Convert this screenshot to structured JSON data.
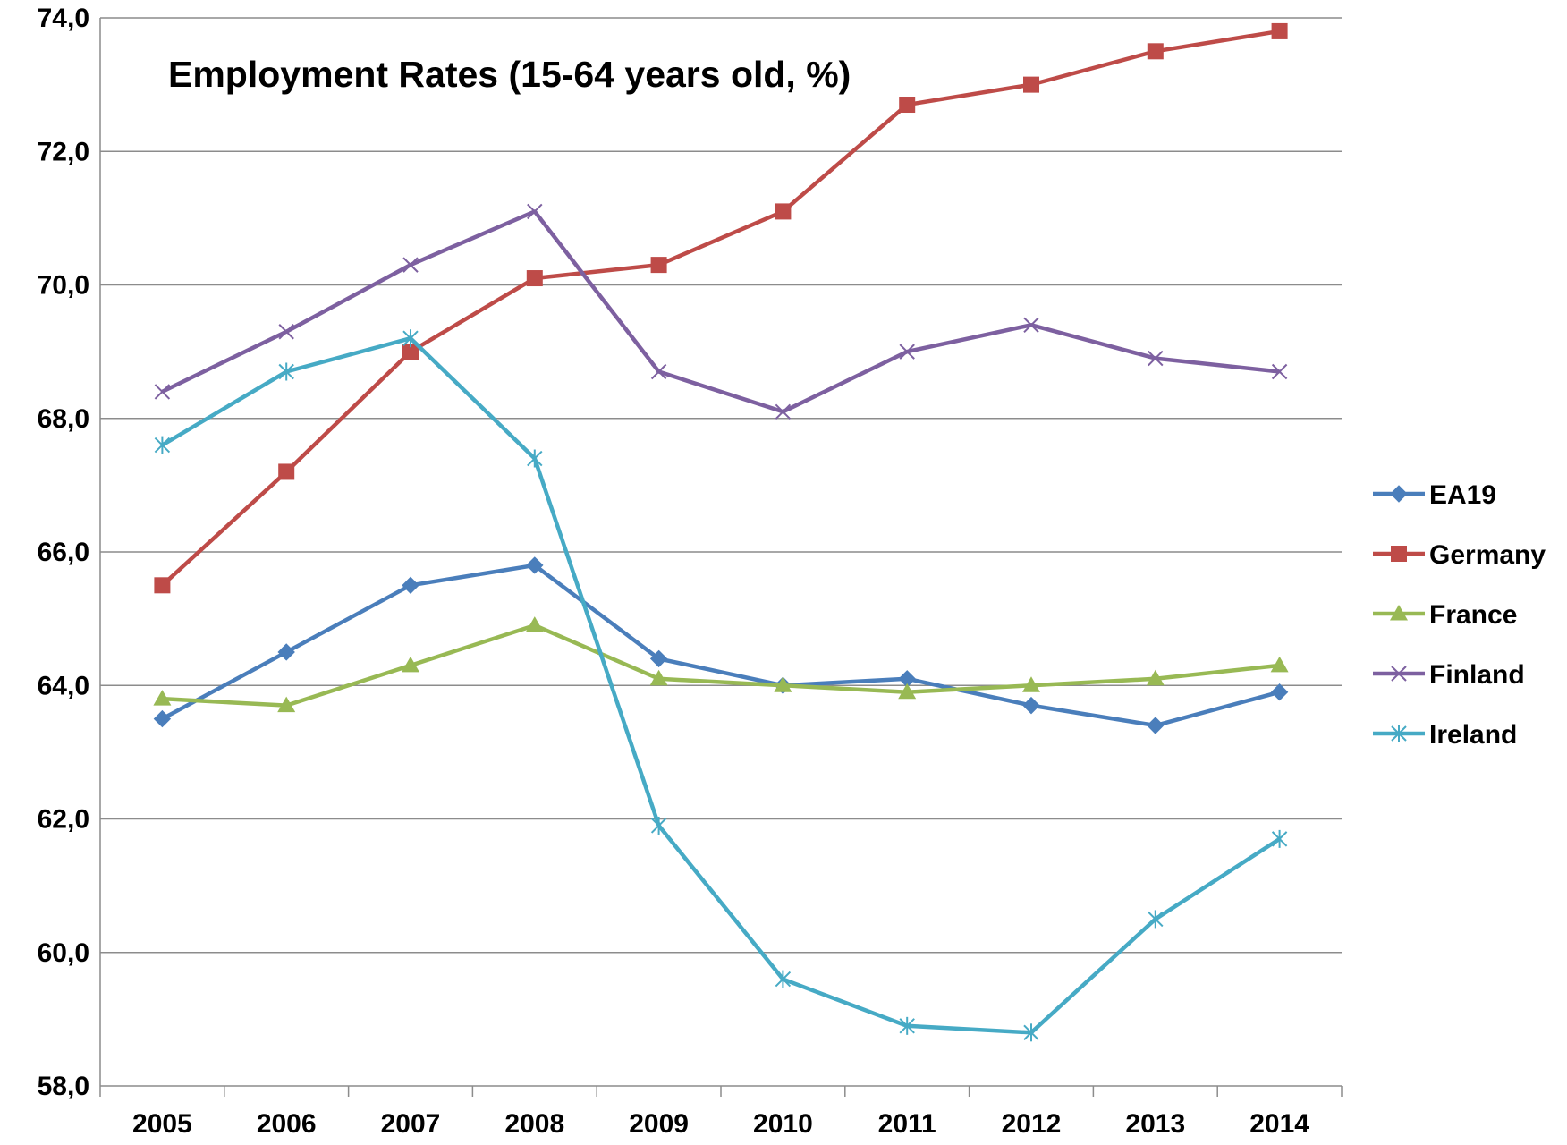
{
  "chart_data": {
    "type": "line",
    "title": "Employment Rates (15-64 years old, %)",
    "xlabel": "",
    "ylabel": "",
    "categories": [
      "2005",
      "2006",
      "2007",
      "2008",
      "2009",
      "2010",
      "2011",
      "2012",
      "2013",
      "2014"
    ],
    "ylim": [
      58.0,
      74.0
    ],
    "yticks": [
      58.0,
      60.0,
      62.0,
      64.0,
      66.0,
      68.0,
      70.0,
      72.0,
      74.0
    ],
    "ytick_labels": [
      "58,0",
      "60,0",
      "62,0",
      "64,0",
      "66,0",
      "68,0",
      "70,0",
      "72,0",
      "74,0"
    ],
    "grid": "horizontal",
    "legend_position": "right",
    "series": [
      {
        "name": "EA19",
        "color": "#4a7ebb",
        "marker": "diamond",
        "values": [
          63.5,
          64.5,
          65.5,
          65.8,
          64.4,
          64.0,
          64.1,
          63.7,
          63.4,
          63.9
        ]
      },
      {
        "name": "Germany",
        "color": "#be4b48",
        "marker": "square",
        "values": [
          65.5,
          67.2,
          69.0,
          70.1,
          70.3,
          71.1,
          72.7,
          73.0,
          73.5,
          73.8
        ]
      },
      {
        "name": "France",
        "color": "#98b954",
        "marker": "triangle",
        "values": [
          63.8,
          63.7,
          64.3,
          64.9,
          64.1,
          64.0,
          63.9,
          64.0,
          64.1,
          64.3
        ]
      },
      {
        "name": "Finland",
        "color": "#7d60a0",
        "marker": "x",
        "values": [
          68.4,
          69.3,
          70.3,
          71.1,
          68.7,
          68.1,
          69.0,
          69.4,
          68.9,
          68.7
        ]
      },
      {
        "name": "Ireland",
        "color": "#46aac5",
        "marker": "star",
        "values": [
          67.6,
          68.7,
          69.2,
          67.4,
          61.9,
          59.6,
          58.9,
          58.8,
          60.5,
          61.7
        ]
      }
    ]
  }
}
